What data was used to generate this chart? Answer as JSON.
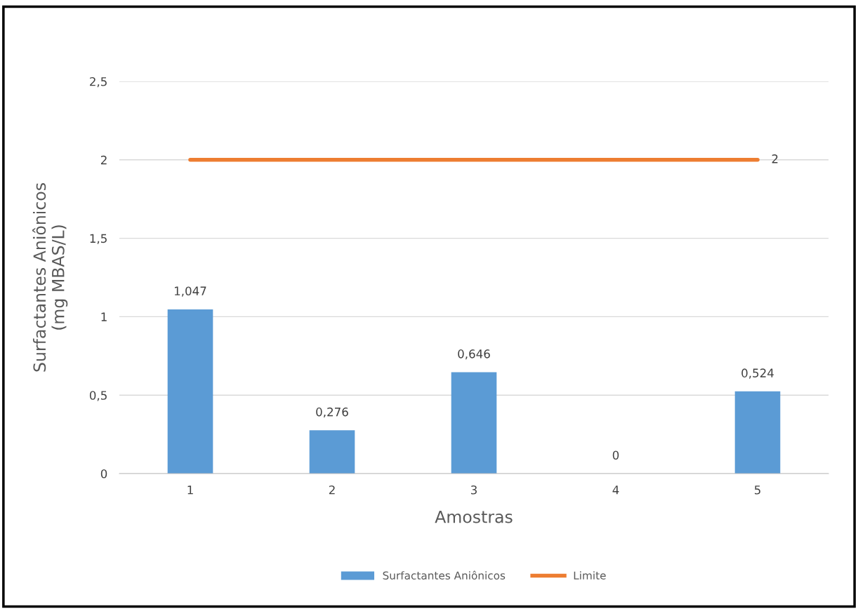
{
  "chart_data": {
    "type": "bar",
    "xlabel": "Amostras",
    "ylabel": "Surfactantes Aniônicos\n(mg MBAS/L)",
    "categories": [
      "1",
      "2",
      "3",
      "4",
      "5"
    ],
    "series": [
      {
        "name": "Surfactantes Aniônicos",
        "color": "#5b9bd5",
        "values": [
          1.047,
          0.276,
          0.646,
          0,
          0.524
        ],
        "value_labels": [
          "1,047",
          "0,276",
          "0,646",
          "0",
          "0,524"
        ]
      },
      {
        "name": "Limite",
        "type": "line",
        "color": "#ed7d31",
        "values": [
          2,
          2,
          2,
          2,
          2
        ],
        "value_labels": [
          null,
          null,
          null,
          null,
          "2"
        ]
      }
    ],
    "ylim": [
      0,
      2.5
    ],
    "yticks": [
      0,
      {
        "value": 0.5,
        "label": "0,5"
      },
      1,
      {
        "value": 1.5,
        "label": "1,5"
      },
      2,
      {
        "value": 2.5,
        "label": "2,5"
      }
    ],
    "grid": "y",
    "legend": "bottom"
  }
}
